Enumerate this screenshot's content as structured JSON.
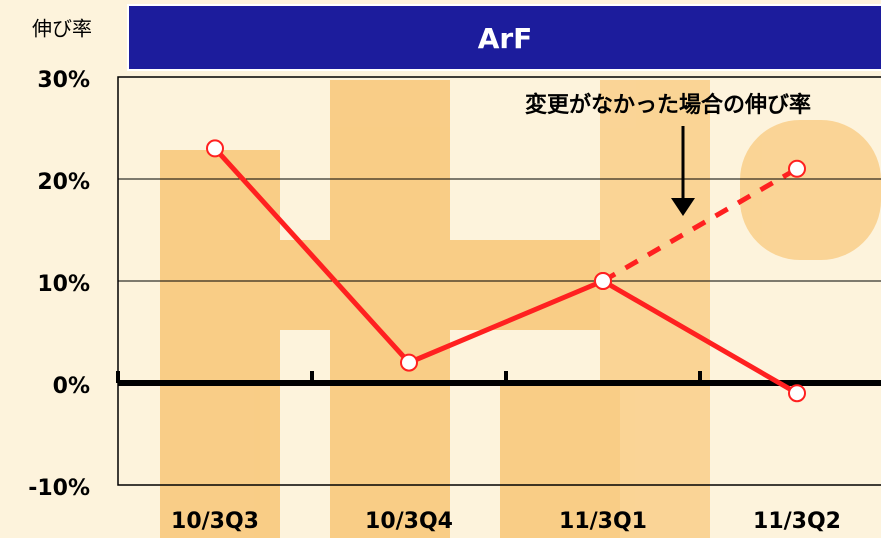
{
  "chart_data": {
    "type": "line",
    "title": "ArF",
    "ylabel": "伸び率",
    "annotation": "変更がなかった場合の伸び率",
    "categories": [
      "10/3Q3",
      "10/3Q4",
      "11/3Q1",
      "11/3Q2"
    ],
    "series": [
      {
        "color": "#ff2020",
        "dashed": false,
        "values": [
          23,
          2,
          10,
          -1
        ]
      },
      {
        "color": "#ff2020",
        "dashed": true,
        "values": [
          null,
          null,
          10,
          21
        ]
      }
    ],
    "ylim": [
      -10,
      30
    ],
    "yticks": [
      {
        "value": -10,
        "label": "-10%"
      },
      {
        "value": 0,
        "label": "0%"
      },
      {
        "value": 10,
        "label": "10%"
      },
      {
        "value": 20,
        "label": "20%"
      },
      {
        "value": 30,
        "label": "30%"
      }
    ],
    "grid": true
  }
}
